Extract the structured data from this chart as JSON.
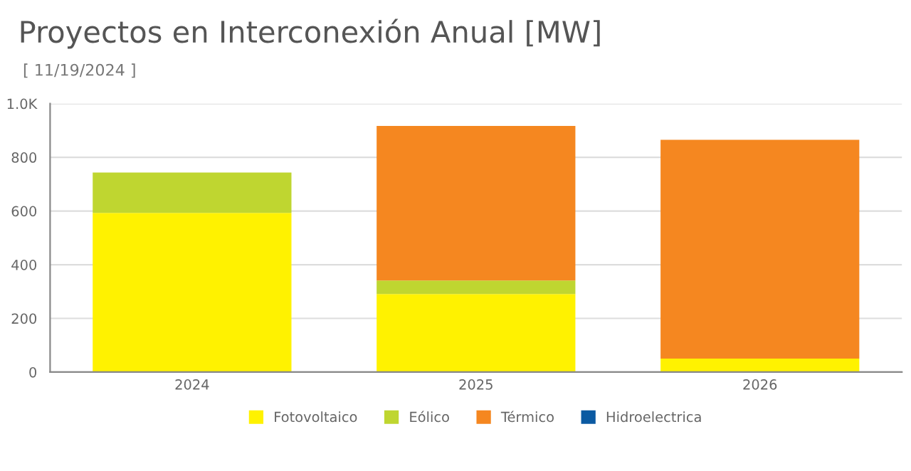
{
  "chart_data": {
    "type": "bar",
    "title": "Proyectos en Interconexión Anual [MW]",
    "subtitle": "[ 11/19/2024 ]",
    "categories": [
      "2024",
      "2025",
      "2026"
    ],
    "series": [
      {
        "name": "Fotovoltaico",
        "color": "#fff200",
        "values": [
          593,
          291,
          50
        ]
      },
      {
        "name": "Eólico",
        "color": "#bfd630",
        "values": [
          150,
          50,
          null
        ]
      },
      {
        "name": "Térmico",
        "color": "#f58720",
        "values": [
          null,
          576,
          815
        ]
      },
      {
        "name": "Hidroelectrica",
        "color": "#0b5aa2",
        "values": [
          null,
          null,
          null
        ]
      }
    ],
    "stacked": true,
    "ylim": [
      0,
      1000
    ],
    "yticks": [
      0,
      200,
      400,
      600,
      800,
      {
        "value": 1000,
        "label": "1.0K"
      }
    ],
    "grid": "y",
    "legend": "bottom"
  }
}
